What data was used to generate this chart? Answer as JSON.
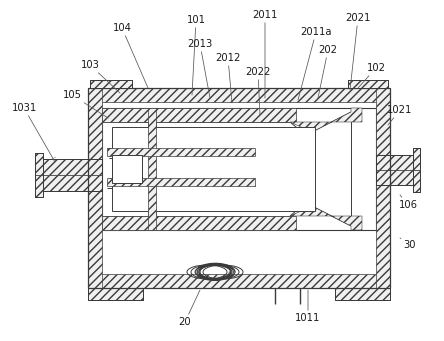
{
  "bg_color": "#ffffff",
  "line_color": "#3a3a3a",
  "figsize": [
    4.44,
    3.41
  ],
  "dpi": 100,
  "annotations": [
    [
      "101",
      192,
      95,
      196,
      20
    ],
    [
      "104",
      148,
      88,
      122,
      28
    ],
    [
      "103",
      120,
      93,
      90,
      65
    ],
    [
      "105",
      108,
      118,
      72,
      95
    ],
    [
      "1031",
      55,
      162,
      24,
      108
    ],
    [
      "102",
      358,
      88,
      376,
      68
    ],
    [
      "1021",
      388,
      125,
      400,
      110
    ],
    [
      "106",
      400,
      195,
      408,
      205
    ],
    [
      "30",
      400,
      238,
      410,
      245
    ],
    [
      "1011",
      308,
      290,
      308,
      318
    ],
    [
      "20",
      200,
      290,
      185,
      322
    ],
    [
      "2011",
      265,
      98,
      265,
      15
    ],
    [
      "2011a",
      298,
      100,
      316,
      32
    ],
    [
      "2012",
      232,
      103,
      228,
      58
    ],
    [
      "2013",
      210,
      98,
      200,
      44
    ],
    [
      "202",
      318,
      98,
      328,
      50
    ],
    [
      "2021",
      350,
      90,
      358,
      18
    ],
    [
      "2022",
      260,
      115,
      258,
      72
    ]
  ]
}
